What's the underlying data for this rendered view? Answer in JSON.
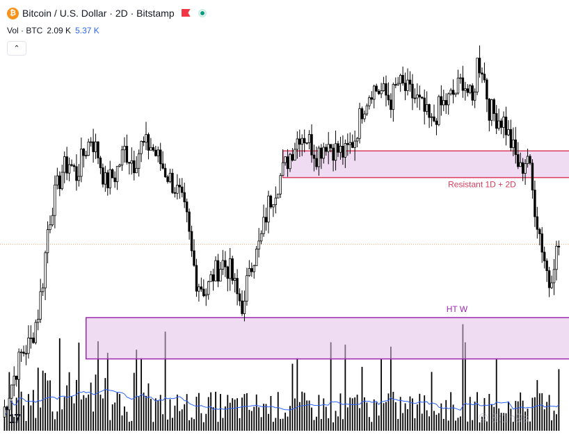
{
  "legend": {
    "coin_icon": "bitcoin-icon",
    "title": "Bitcoin / U.S. Dollar · 2D · Bitstamp",
    "flag_color": "#f23645",
    "status_color": "#089981"
  },
  "volume_legend": {
    "label": "Vol · BTC",
    "value": "2.09 K",
    "ma_value": "5.37 K"
  },
  "watermark": "© 8:1h9s",
  "chart_data": {
    "type": "candlestick",
    "title": "Bitcoin / U.S. Dollar · 2D · Bitstamp",
    "ylim": [
      0,
      100
    ],
    "current_price_level": 46.4,
    "zones": [
      {
        "label": "Resistant 1D + 2D",
        "x_start_index": 117,
        "x_end": "right-edge",
        "top": 68.8,
        "bottom": 62.4,
        "color": "#d83b5c"
      },
      {
        "label": "HT W",
        "x_start_index": 35,
        "x_end": "right-edge",
        "top": 28.8,
        "bottom": 18.9,
        "color": "#9c27b0"
      }
    ],
    "volume_ma_color": "#2962ff",
    "up_color": "#ffffff",
    "down_color": "#000000"
  }
}
